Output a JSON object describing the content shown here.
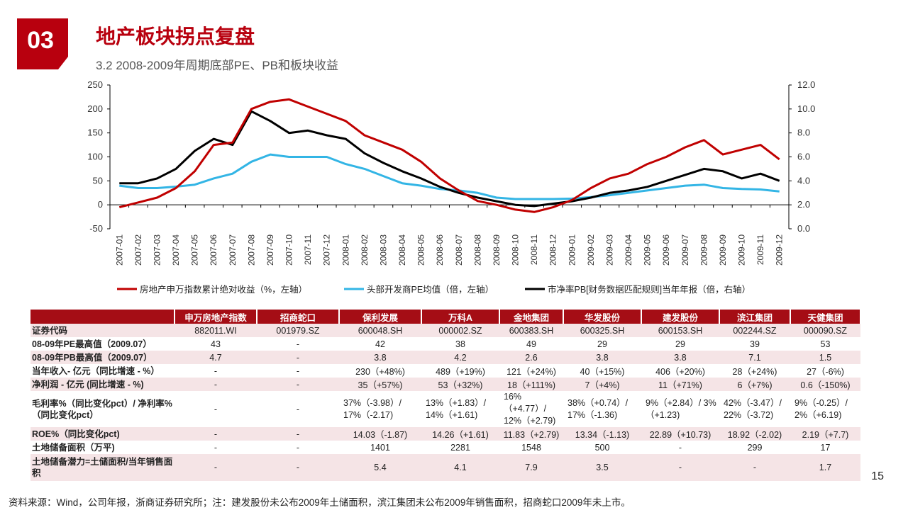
{
  "section_number": "03",
  "title": "地产板块拐点复盘",
  "subtitle": "3.2 2008-2009年周期底部PE、PB和板块收益",
  "page_number": "15",
  "footnote": "资料来源：Wind，公司年报，浙商证券研究所；注：建发股份未公布2009年土储面积，滨江集团未公布2009年销售面积，招商蛇口2009年未上市。",
  "colors": {
    "brand_red": "#b8000e",
    "table_header": "#a50d15",
    "row_shade": "#f5e4e6",
    "series_red": "#c00000",
    "series_blue": "#33b5e5",
    "series_black": "#000000"
  },
  "chart_data": {
    "type": "line",
    "categories": [
      "2007-01",
      "2007-02",
      "2007-03",
      "2007-04",
      "2007-05",
      "2007-06",
      "2007-07",
      "2007-08",
      "2007-09",
      "2007-10",
      "2007-11",
      "2007-12",
      "2008-01",
      "2008-02",
      "2008-03",
      "2008-04",
      "2008-05",
      "2008-06",
      "2008-07",
      "2008-08",
      "2008-09",
      "2008-10",
      "2008-11",
      "2008-12",
      "2009-01",
      "2009-02",
      "2009-03",
      "2009-04",
      "2009-05",
      "2009-06",
      "2009-07",
      "2009-08",
      "2009-09",
      "2009-10",
      "2009-11",
      "2009-12"
    ],
    "left_axis": {
      "ylim": [
        -50,
        250
      ],
      "ticks": [
        "-50",
        "0",
        "50",
        "100",
        "150",
        "200",
        "250"
      ]
    },
    "right_axis": {
      "ylim": [
        0,
        12
      ],
      "ticks": [
        "0.0",
        "2.0",
        "4.0",
        "6.0",
        "8.0",
        "10.0",
        "12.0"
      ]
    },
    "series": [
      {
        "name": "房地产申万指数累计绝对收益（%，左轴）",
        "axis": "left",
        "color": "#c00000",
        "values": [
          -5,
          5,
          15,
          35,
          70,
          125,
          130,
          200,
          215,
          220,
          205,
          190,
          175,
          145,
          130,
          115,
          90,
          55,
          30,
          8,
          0,
          -10,
          -15,
          -5,
          10,
          35,
          55,
          65,
          85,
          100,
          120,
          135,
          105,
          115,
          125,
          95
        ]
      },
      {
        "name": "头部开发商PE均值（倍，左轴）",
        "axis": "left",
        "color": "#33b5e5",
        "values": [
          40,
          35,
          35,
          38,
          42,
          55,
          65,
          90,
          105,
          100,
          100,
          100,
          85,
          75,
          60,
          45,
          40,
          33,
          30,
          25,
          15,
          12,
          12,
          12,
          13,
          16,
          20,
          25,
          30,
          35,
          40,
          42,
          35,
          33,
          32,
          28
        ]
      },
      {
        "name": "市净率PB[财务数据匹配规则]当年年报（倍，右轴）",
        "axis": "right",
        "color": "#000000",
        "values": [
          3.8,
          3.8,
          4.2,
          5.0,
          6.5,
          7.5,
          7.0,
          9.8,
          9.0,
          8.0,
          8.2,
          7.8,
          7.5,
          6.3,
          5.5,
          4.8,
          4.2,
          3.5,
          3.0,
          2.6,
          2.3,
          2.0,
          1.9,
          2.1,
          2.3,
          2.6,
          3.0,
          3.2,
          3.5,
          4.0,
          4.5,
          5.0,
          4.8,
          4.2,
          4.6,
          4.0
        ]
      }
    ]
  },
  "table": {
    "headers": [
      "申万房地产指数",
      "招商蛇口",
      "保利发展",
      "万科A",
      "金地集团",
      "华发股份",
      "建发股份",
      "滨江集团",
      "天健集团"
    ],
    "rows": [
      {
        "label": "证券代码",
        "cells": [
          "882011.WI",
          "001979.SZ",
          "600048.SH",
          "000002.SZ",
          "600383.SH",
          "600325.SH",
          "600153.SH",
          "002244.SZ",
          "000090.SZ"
        ]
      },
      {
        "label": "08-09年PE最高值（2009.07）",
        "cells": [
          "43",
          "-",
          "42",
          "38",
          "49",
          "29",
          "29",
          "39",
          "53"
        ]
      },
      {
        "label": "08-09年PB最高值（2009.07）",
        "cells": [
          "4.7",
          "-",
          "3.8",
          "4.2",
          "2.6",
          "3.8",
          "3.8",
          "7.1",
          "1.5"
        ]
      },
      {
        "label": "当年收入- 亿元（同比增速 - %）",
        "cells": [
          "-",
          "-",
          "230（+48%)",
          "489（+19%)",
          "121（+24%)",
          "40（+15%)",
          "406（+20%)",
          "28（+24%)",
          "27（-6%)"
        ]
      },
      {
        "label": "净利润 - 亿元 (同比增速 - %)",
        "cells": [
          "-",
          "-",
          "35（+57%)",
          "53（+32%)",
          "18（+111%)",
          "7（+4%)",
          "11（+71%)",
          "6（+7%)",
          "0.6（-150%)"
        ]
      },
      {
        "label": "毛利率%（同比变化pct）/ 净利率%（同比变化pct）",
        "tall": true,
        "cells": [
          "-",
          "-",
          "37%（-3.98）/ 17%（-2.17)",
          "13%（+1.83）/ 14%（+1.61)",
          "16%（+4.77）/ 12%（+2.79)",
          "38%（+0.74）/ 17%（-1.36)",
          "9%（+2.84）/ 3%（+1.23)",
          "42%（-3.47）/ 22%（-3.72)",
          "9%（-0.25）/ 2%（+6.19)"
        ]
      },
      {
        "label": "ROE%（同比变化pct)",
        "cells": [
          "-",
          "-",
          "14.03（-1.87)",
          "14.26（+1.61)",
          "11.83（+2.79)",
          "13.34（-1.13)",
          "22.89（+10.73)",
          "18.92（-2.02)",
          "2.19（+7.7)"
        ]
      },
      {
        "label": "土地储备面积（万平)",
        "cells": [
          "-",
          "-",
          "1401",
          "2281",
          "1548",
          "500",
          "-",
          "299",
          "17"
        ]
      },
      {
        "label": "土地储备潜力=土储面积/当年销售面积",
        "tall": true,
        "cells": [
          "-",
          "-",
          "5.4",
          "4.1",
          "7.9",
          "3.5",
          "-",
          "-",
          "1.7"
        ]
      }
    ]
  }
}
